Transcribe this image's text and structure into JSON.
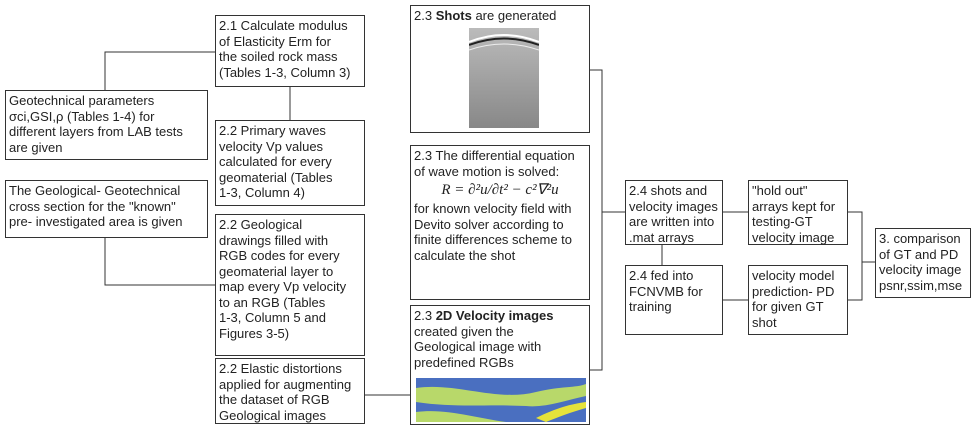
{
  "nodes": [
    {
      "lines": [
        "Geotechnical parameters",
        "σci,GSI,ρ (Tables 1-4) for",
        "different layers from LAB tests",
        "are given"
      ]
    },
    {
      "lines": [
        "The Geological- Geotechnical",
        "cross section for the \"known\"",
        "pre- investigated area is given"
      ]
    },
    {
      "lines": [
        "2.1 Calculate modulus",
        "of Elasticity Erm for",
        "the soiled rock mass",
        "(Tables 1-3, Column 3)"
      ]
    },
    {
      "lines": [
        "2.2 Primary waves",
        "velocity Vp values",
        "calculated for every",
        "geomaterial (Tables",
        "1-3, Column 4)"
      ]
    },
    {
      "lines": [
        "2.2 Geological",
        "drawings filled with",
        "RGB codes for every",
        "geomaterial layer to",
        "map every Vp velocity",
        "to an RGB (Tables",
        "1-3, Column 5 and",
        "Figures 3-5)"
      ]
    },
    {
      "lines": [
        "2.2 Elastic distortions",
        "applied for augmenting",
        "the dataset of RGB",
        "Geological images"
      ]
    },
    {
      "number": "2.3",
      "bold": "Shots",
      "rest": "are generated"
    },
    {
      "lines": [
        "2.3 The differential equation",
        "of wave motion is solved:"
      ],
      "equation": "R = ∂²u/∂t² − c²∇²u",
      "lines_after": [
        "for known velocity field with",
        "Devito solver according to",
        "finite differences scheme to",
        "calculate the shot"
      ]
    },
    {
      "number": "2.3",
      "bold": "2D Velocity images",
      "lines": [
        "created given the",
        "Geological image with",
        "predefined RGBs"
      ]
    },
    {
      "lines": [
        "2.4 shots and",
        "velocity images",
        "are written into",
        ".mat arrays"
      ]
    },
    {
      "lines": [
        "2.4 fed into",
        "FCNVMB for",
        "training"
      ]
    },
    {
      "lines": [
        "\"hold out\"",
        "arrays kept for",
        "testing-GT",
        "velocity image"
      ]
    },
    {
      "lines": [
        "velocity model",
        "prediction- PD",
        "for given GT",
        "shot"
      ]
    },
    {
      "lines": [
        "3. comparison",
        "of GT and PD",
        "velocity image",
        "psnr,ssim,mse"
      ]
    }
  ]
}
